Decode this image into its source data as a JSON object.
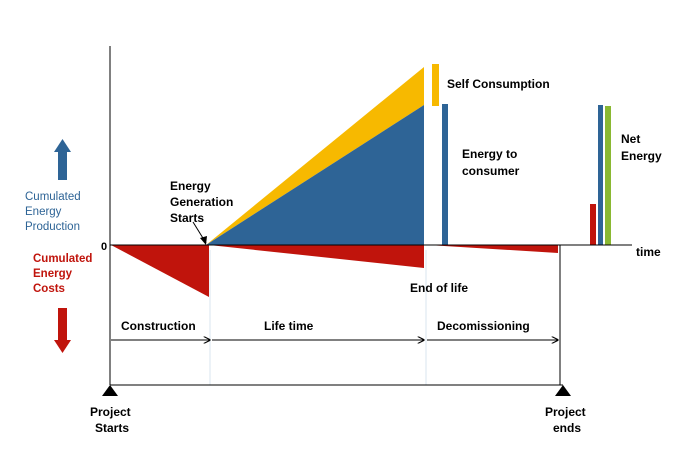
{
  "labels": {
    "zero": "0",
    "time": "time",
    "self_consumption": "Self Consumption",
    "energy_to_consumer": [
      "Energy to",
      "consumer"
    ],
    "net_energy": [
      "Net",
      "Energy"
    ],
    "energy_generation_starts": [
      "Energy",
      "Generation",
      "Starts"
    ],
    "end_of_life": "End of life",
    "cumulated_production": [
      "Cumulated",
      "Energy",
      "Production"
    ],
    "cumulated_costs": [
      "Cumulated",
      "Energy",
      "Costs"
    ],
    "project_starts": [
      "Project",
      "Starts"
    ],
    "project_ends": [
      "Project",
      "ends"
    ]
  },
  "phases": {
    "construction": "Construction",
    "life_time": "Life time",
    "decommissioning": "Decomissioning"
  },
  "colors": {
    "production": "#2e6496",
    "cost": "#c0140c",
    "self_consumption": "#f7b900",
    "net": "#8ab832",
    "axis": "#000000",
    "guide": "#d8e6ef"
  }
}
